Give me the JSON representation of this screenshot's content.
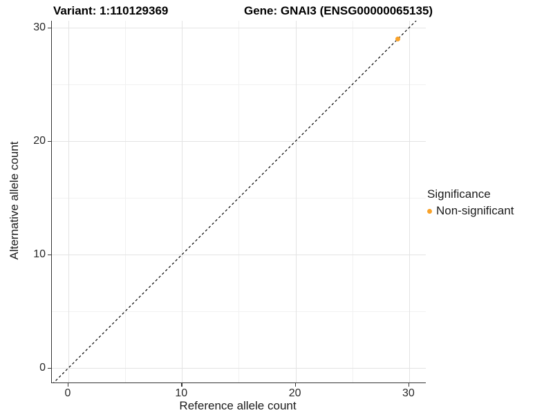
{
  "chart_data": {
    "type": "scatter",
    "title_left": "Variant: 1:110129369",
    "title_right": "Gene: GNAI3 (ENSG00000065135)",
    "xlabel": "Reference allele count",
    "ylabel": "Alternative allele count",
    "x_ticks": [
      0,
      10,
      20,
      30
    ],
    "y_ticks": [
      0,
      10,
      20,
      30
    ],
    "minor_gridlines": [
      5,
      15,
      25
    ],
    "xlim": [
      -1.5,
      31.5
    ],
    "ylim": [
      -1.3,
      30.6
    ],
    "grid": "on",
    "background": "#ffffff",
    "series": [
      {
        "name": "Non-significant",
        "color": "#F9A229",
        "marker": "circle",
        "points": [
          [
            29,
            29
          ]
        ]
      }
    ],
    "reference_line": {
      "kind": "identity",
      "equation": "y = x",
      "style": "dashed",
      "color": "#000000"
    },
    "legend": {
      "title": "Significance",
      "position": "right",
      "entries": [
        {
          "label": "Non-significant",
          "color": "#F9A229",
          "marker": "circle"
        }
      ]
    }
  }
}
